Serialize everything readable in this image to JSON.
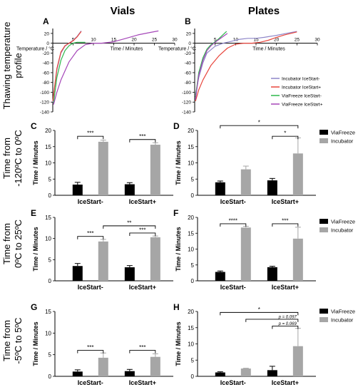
{
  "figure": {
    "column_titles": [
      "Vials",
      "Plates"
    ],
    "row_titles": [
      [
        "Thawing temperature",
        "profile"
      ],
      [
        "Time from",
        "-120ºC to 0ºC"
      ],
      [
        "Time from",
        "0ºC to 25ºC"
      ],
      [
        "Time from",
        "-5ºC to 5ºC"
      ]
    ]
  },
  "legend_lines": [
    {
      "name": "Incubator IceStart-",
      "color": "#8e86c9"
    },
    {
      "name": "Incubator IceStart+",
      "color": "#e8453c"
    },
    {
      "name": "ViaFreeze IceStart-",
      "color": "#2db84b"
    },
    {
      "name": "ViaFreeze IceStart+",
      "color": "#a546b8"
    }
  ],
  "legend_bars": [
    {
      "name": "ViaFreeze",
      "color": "#000000"
    },
    {
      "name": "Incubator",
      "color": "#a6a6a6"
    }
  ],
  "colors": {
    "viafreeze": "#000000",
    "incubator": "#a6a6a6"
  },
  "chart_data": [
    {
      "id": "A",
      "type": "line",
      "panel_label": "A",
      "xlabel": "Time / Minutes",
      "ylabel": "Temperature / °C",
      "xlim": [
        0,
        30
      ],
      "ylim": [
        -140,
        30
      ],
      "xticks": [
        5,
        10,
        15,
        20,
        25,
        30
      ],
      "yticks": [
        -140,
        -120,
        -100,
        -80,
        -60,
        -40,
        -20,
        0,
        20
      ],
      "series": [
        {
          "name": "Incubator IceStart-",
          "color": "#8e86c9",
          "x": [
            0,
            1,
            2,
            3,
            4,
            5,
            6,
            7
          ],
          "y": [
            -120,
            -55,
            -20,
            -6,
            0,
            6,
            14,
            25
          ]
        },
        {
          "name": "Incubator IceStart+",
          "color": "#e8453c",
          "x": [
            0,
            1,
            2,
            3,
            4,
            5,
            6,
            7
          ],
          "y": [
            -118,
            -52,
            -18,
            -5,
            0,
            5,
            13,
            24
          ]
        },
        {
          "name": "ViaFreeze IceStart-",
          "color": "#2db84b",
          "x": [
            0.2,
            1,
            2,
            3,
            4,
            5,
            6,
            7,
            8
          ],
          "y": [
            -122,
            -70,
            -35,
            -15,
            -5,
            0,
            2,
            2,
            2
          ]
        },
        {
          "name": "ViaFreeze IceStart+",
          "color": "#a546b8",
          "x": [
            0.2,
            1,
            2,
            4,
            6,
            8,
            10,
            12,
            15,
            18,
            21,
            24,
            26
          ],
          "y": [
            -125,
            -100,
            -75,
            -38,
            -15,
            -3,
            0,
            0,
            3,
            10,
            17,
            22,
            25
          ]
        }
      ]
    },
    {
      "id": "B",
      "type": "line",
      "panel_label": "B",
      "xlabel": "Time / Minutes",
      "ylabel": "Temperature / °C",
      "xlim": [
        0,
        30
      ],
      "ylim": [
        -140,
        30
      ],
      "xticks": [
        5,
        10,
        15,
        20,
        25,
        30
      ],
      "yticks": [
        -140,
        -120,
        -100,
        -80,
        -60,
        -40,
        -20,
        0,
        20
      ],
      "series": [
        {
          "name": "Incubator IceStart-",
          "color": "#8e86c9",
          "x": [
            0.2,
            1,
            2,
            3,
            5,
            7,
            9,
            11,
            13,
            15,
            17,
            20,
            23,
            25
          ],
          "y": [
            -105,
            -70,
            -40,
            -20,
            -6,
            0,
            4,
            8,
            10,
            10,
            12,
            16,
            21,
            24
          ]
        },
        {
          "name": "Incubator IceStart+",
          "color": "#e8453c",
          "x": [
            0.2,
            1,
            2,
            4,
            6,
            8,
            10,
            12,
            14,
            16,
            18,
            20,
            22,
            24,
            25
          ],
          "y": [
            -118,
            -95,
            -75,
            -45,
            -25,
            -10,
            -2,
            0,
            0,
            2,
            6,
            12,
            17,
            21,
            23
          ]
        },
        {
          "name": "ViaFreeze IceStart-",
          "color": "#2db84b",
          "x": [
            0.2,
            1,
            2,
            3,
            4,
            5,
            6,
            7,
            7.8
          ],
          "y": [
            -110,
            -60,
            -30,
            -12,
            -3,
            3,
            10,
            18,
            24
          ]
        },
        {
          "name": "ViaFreeze IceStart+",
          "color": "#a546b8",
          "x": [
            0.2,
            1,
            2,
            3,
            4,
            5,
            6,
            7,
            8
          ],
          "y": [
            -115,
            -65,
            -35,
            -15,
            -5,
            2,
            8,
            14,
            20
          ]
        }
      ]
    },
    {
      "id": "C",
      "type": "bar",
      "panel_label": "C",
      "ylabel": "Time / Minutes",
      "ylim": [
        0,
        20
      ],
      "yticks": [
        0,
        5,
        10,
        15,
        20
      ],
      "categories": [
        "IceStart-",
        "IceStart+"
      ],
      "series": [
        {
          "name": "ViaFreeze",
          "values": [
            3.3,
            3.4
          ],
          "errors": [
            0.7,
            0.5
          ]
        },
        {
          "name": "Incubator",
          "values": [
            16.5,
            15.6
          ],
          "errors": [
            0.5,
            0.6
          ]
        }
      ],
      "annotations": [
        {
          "text": "***",
          "from": [
            0,
            0
          ],
          "to": [
            0,
            1
          ],
          "y": 18.2
        },
        {
          "text": "***",
          "from": [
            1,
            0
          ],
          "to": [
            1,
            1
          ],
          "y": 17.2
        }
      ]
    },
    {
      "id": "D",
      "type": "bar",
      "panel_label": "D",
      "ylabel": "Time / Minutes",
      "ylim": [
        0,
        20
      ],
      "yticks": [
        0,
        5,
        10,
        15,
        20
      ],
      "categories": [
        "IceStart-",
        "IceStart+"
      ],
      "series": [
        {
          "name": "ViaFreeze",
          "values": [
            4.0,
            4.6
          ],
          "errors": [
            0.4,
            0.6
          ]
        },
        {
          "name": "Incubator",
          "values": [
            8.0,
            12.9
          ],
          "errors": [
            1.0,
            4.8
          ]
        }
      ],
      "annotations": [
        {
          "text": "*",
          "from": [
            1,
            0
          ],
          "to": [
            1,
            1
          ],
          "y": 18.2
        },
        {
          "text": "*",
          "from": [
            0,
            0
          ],
          "to": [
            1,
            1
          ],
          "y": 21.5
        }
      ]
    },
    {
      "id": "E",
      "type": "bar",
      "panel_label": "E",
      "ylabel": "Time / Minutes",
      "ylim": [
        0,
        15
      ],
      "yticks": [
        0,
        5,
        10,
        15
      ],
      "categories": [
        "IceStart-",
        "IceStart+"
      ],
      "series": [
        {
          "name": "ViaFreeze",
          "values": [
            3.5,
            3.2
          ],
          "errors": [
            0.6,
            0.4
          ]
        },
        {
          "name": "Incubator",
          "values": [
            9.3,
            10.3
          ],
          "errors": [
            0.5,
            0.3
          ]
        }
      ],
      "annotations": [
        {
          "text": "***",
          "from": [
            0,
            0
          ],
          "to": [
            0,
            1
          ],
          "y": 10.5
        },
        {
          "text": "***",
          "from": [
            1,
            0
          ],
          "to": [
            1,
            1
          ],
          "y": 11.3
        },
        {
          "text": "**",
          "from": [
            0,
            1
          ],
          "to": [
            1,
            1
          ],
          "y": 13.0
        }
      ]
    },
    {
      "id": "F",
      "type": "bar",
      "panel_label": "F",
      "ylabel": "Time / Minutes",
      "ylim": [
        0,
        20
      ],
      "yticks": [
        0,
        5,
        10,
        15,
        20
      ],
      "categories": [
        "IceStart-",
        "IceStart+"
      ],
      "series": [
        {
          "name": "ViaFreeze",
          "values": [
            2.8,
            4.3
          ],
          "errors": [
            0.3,
            0.3
          ]
        },
        {
          "name": "Incubator",
          "values": [
            16.8,
            13.3
          ],
          "errors": [
            0.4,
            3.6
          ]
        }
      ],
      "annotations": [
        {
          "text": "****",
          "from": [
            0,
            0
          ],
          "to": [
            0,
            1
          ],
          "y": 18.0
        },
        {
          "text": "***",
          "from": [
            1,
            0
          ],
          "to": [
            1,
            1
          ],
          "y": 18.0
        }
      ]
    },
    {
      "id": "G",
      "type": "bar",
      "panel_label": "G",
      "ylabel": "Time / Minutes",
      "ylim": [
        0,
        15
      ],
      "yticks": [
        0,
        5,
        10,
        15
      ],
      "categories": [
        "IceStart-",
        "IceStart+"
      ],
      "series": [
        {
          "name": "ViaFreeze",
          "values": [
            1.1,
            1.2
          ],
          "errors": [
            0.4,
            0.4
          ]
        },
        {
          "name": "Incubator",
          "values": [
            4.3,
            4.5
          ],
          "errors": [
            1.1,
            0.7
          ]
        }
      ],
      "annotations": [
        {
          "text": "***",
          "from": [
            0,
            0
          ],
          "to": [
            0,
            1
          ],
          "y": 6.0
        },
        {
          "text": "***",
          "from": [
            1,
            0
          ],
          "to": [
            1,
            1
          ],
          "y": 6.0
        }
      ]
    },
    {
      "id": "H",
      "type": "bar",
      "panel_label": "H",
      "ylabel": "Time / Minutes",
      "ylim": [
        0,
        20
      ],
      "yticks": [
        0,
        5,
        10,
        15,
        20
      ],
      "categories": [
        "IceStart-",
        "IceStart+"
      ],
      "series": [
        {
          "name": "ViaFreeze",
          "values": [
            1.2,
            1.9
          ],
          "errors": [
            0.2,
            1.2
          ]
        },
        {
          "name": "Incubator",
          "values": [
            2.4,
            9.3
          ],
          "errors": [
            0.1,
            5.5
          ]
        }
      ],
      "annotations": [
        {
          "text": "p = 0.069",
          "from": [
            1,
            0
          ],
          "to": [
            1,
            1
          ],
          "y": 15.5
        },
        {
          "text": "p = 0.097",
          "from": [
            0,
            1
          ],
          "to": [
            1,
            1
          ],
          "y": 17.6
        },
        {
          "text": "*",
          "from": [
            0,
            0
          ],
          "to": [
            1,
            1
          ],
          "y": 19.7
        }
      ]
    }
  ]
}
